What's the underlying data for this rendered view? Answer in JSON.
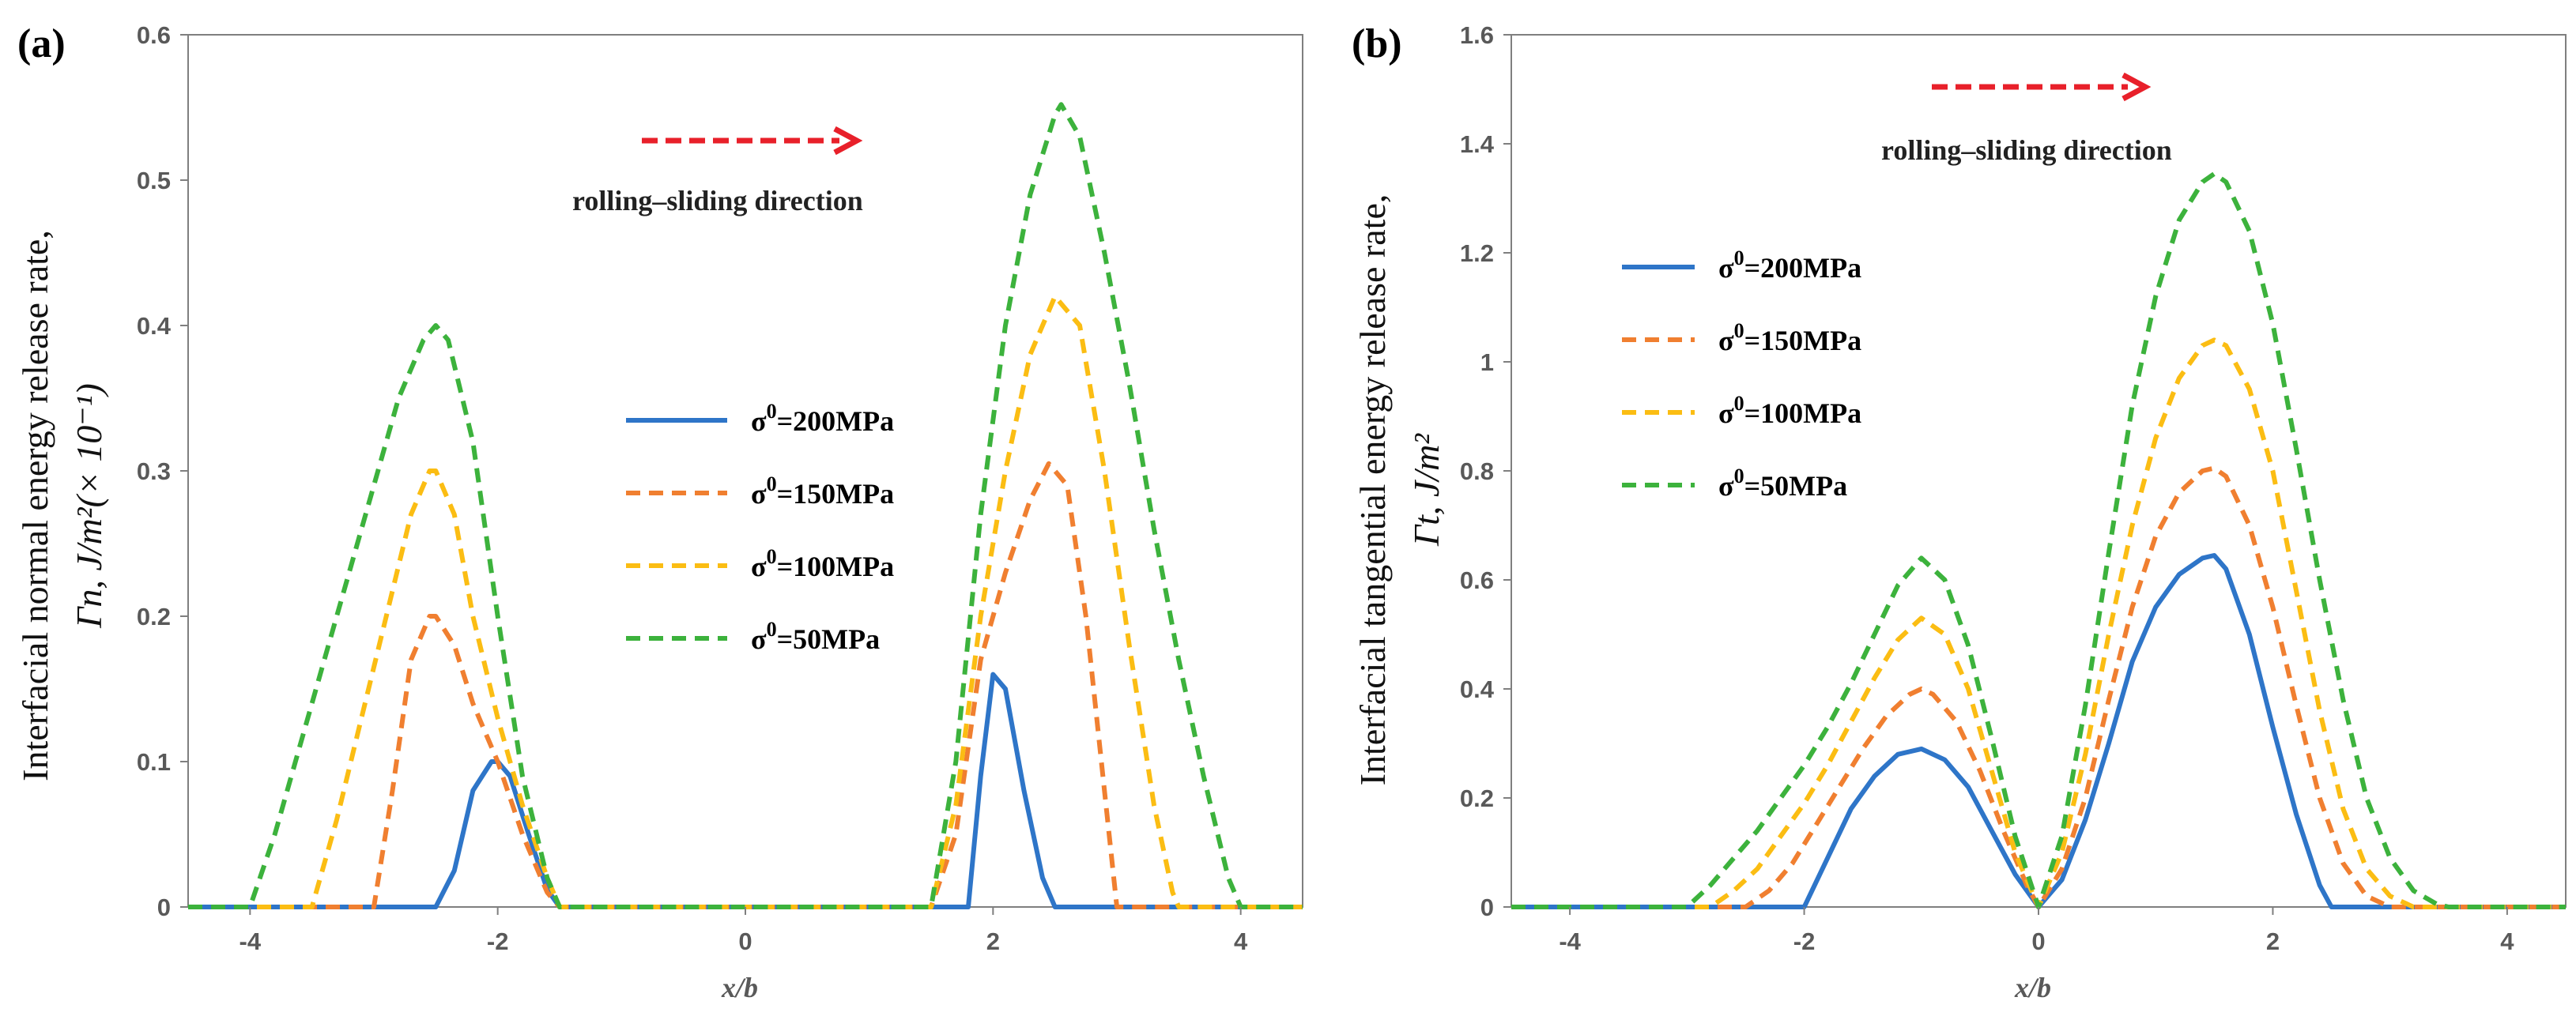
{
  "chart_data": [
    {
      "type": "line",
      "panel_label": "(a)",
      "title": "",
      "xlabel": "x/b",
      "ylabel_line1": "Interfacial normal energy release rate,",
      "ylabel_line2": "Γn,  J/m²(× 10⁻¹)",
      "xlim": [
        -4.5,
        4.5
      ],
      "ylim": [
        0,
        0.6
      ],
      "xticks": [
        -4,
        -2,
        0,
        2,
        4
      ],
      "xtick_labels": [
        "-4",
        "-2",
        "0",
        "2",
        "4"
      ],
      "yticks": [
        0,
        0.1,
        0.2,
        0.3,
        0.4,
        0.5,
        0.6
      ],
      "ytick_labels": [
        "0",
        "0.1",
        "0.2",
        "0.3",
        "0.4",
        "0.5",
        "0.6"
      ],
      "annotation": "rolling–sliding direction",
      "legend_position": "center",
      "series": [
        {
          "name": "σ⁰=200MPa",
          "legend_main": "σ",
          "legend_sup": "0",
          "legend_rest": "=200MPa",
          "color": "#2e75c8",
          "dash": "solid",
          "x": [
            -4.5,
            -2.5,
            -2.35,
            -2.2,
            -2.05,
            -2.0,
            -1.9,
            -1.75,
            -1.6,
            -1.5,
            1.5,
            1.8,
            1.9,
            2.0,
            2.1,
            2.25,
            2.4,
            2.5,
            4.5
          ],
          "y": [
            0,
            0,
            0.025,
            0.08,
            0.1,
            0.1,
            0.09,
            0.05,
            0.012,
            0,
            0,
            0,
            0.09,
            0.16,
            0.15,
            0.08,
            0.02,
            0,
            0
          ]
        },
        {
          "name": "σ⁰=150MPa",
          "legend_main": "σ",
          "legend_sup": "0",
          "legend_rest": "=150MPa",
          "color": "#f07f30",
          "dash": "dash",
          "x": [
            -4.5,
            -3.0,
            -2.85,
            -2.7,
            -2.55,
            -2.5,
            -2.35,
            -2.2,
            -2.0,
            -1.8,
            -1.6,
            -1.5,
            1.5,
            1.7,
            1.9,
            2.1,
            2.3,
            2.45,
            2.6,
            2.75,
            2.9,
            3.0,
            4.5
          ],
          "y": [
            0,
            0,
            0.08,
            0.17,
            0.2,
            0.2,
            0.18,
            0.14,
            0.1,
            0.05,
            0.01,
            0,
            0,
            0.05,
            0.17,
            0.23,
            0.28,
            0.305,
            0.29,
            0.2,
            0.08,
            0,
            0
          ]
        },
        {
          "name": "σ⁰=100MPa",
          "legend_main": "σ",
          "legend_sup": "0",
          "legend_rest": "=100MPa",
          "color": "#fbbd13",
          "dash": "dash",
          "x": [
            -4.5,
            -3.5,
            -3.3,
            -3.1,
            -2.9,
            -2.7,
            -2.55,
            -2.5,
            -2.35,
            -2.2,
            -2.0,
            -1.8,
            -1.6,
            -1.5,
            1.5,
            1.7,
            1.9,
            2.1,
            2.3,
            2.5,
            2.7,
            2.9,
            3.1,
            3.3,
            3.45,
            3.5,
            4.5
          ],
          "y": [
            0,
            0,
            0.06,
            0.13,
            0.2,
            0.27,
            0.3,
            0.3,
            0.27,
            0.2,
            0.13,
            0.07,
            0.02,
            0,
            0,
            0.07,
            0.2,
            0.3,
            0.38,
            0.42,
            0.4,
            0.3,
            0.18,
            0.07,
            0.01,
            0,
            0
          ]
        },
        {
          "name": "σ⁰=50MPa",
          "legend_main": "σ",
          "legend_sup": "0",
          "legend_rest": "=50MPa",
          "color": "#3cb23c",
          "dash": "dash",
          "x": [
            -4.5,
            -4.0,
            -3.8,
            -3.6,
            -3.4,
            -3.2,
            -3.0,
            -2.8,
            -2.6,
            -2.5,
            -2.4,
            -2.2,
            -2.0,
            -1.8,
            -1.6,
            -1.5,
            1.5,
            1.7,
            1.9,
            2.1,
            2.3,
            2.5,
            2.55,
            2.7,
            2.9,
            3.1,
            3.3,
            3.5,
            3.7,
            3.9,
            4.0,
            4.5
          ],
          "y": [
            0,
            0,
            0.05,
            0.11,
            0.17,
            0.23,
            0.29,
            0.35,
            0.39,
            0.4,
            0.39,
            0.32,
            0.2,
            0.09,
            0.02,
            0,
            0,
            0.1,
            0.27,
            0.4,
            0.49,
            0.545,
            0.552,
            0.53,
            0.45,
            0.36,
            0.26,
            0.17,
            0.09,
            0.02,
            0,
            0
          ]
        }
      ]
    },
    {
      "type": "line",
      "panel_label": "(b)",
      "title": "",
      "xlabel": "x/b",
      "ylabel_line1": "Interfacial tangential energy release rate,",
      "ylabel_line2": "Γt,  J/m²",
      "xlim": [
        -4.5,
        4.5
      ],
      "ylim": [
        0,
        1.6
      ],
      "xticks": [
        -4,
        -2,
        0,
        2,
        4
      ],
      "xtick_labels": [
        "-4",
        "-2",
        "0",
        "2",
        "4"
      ],
      "yticks": [
        0,
        0.2,
        0.4,
        0.6,
        0.8,
        1.0,
        1.2,
        1.4,
        1.6
      ],
      "ytick_labels": [
        "0",
        "0.2",
        "0.4",
        "0.6",
        "0.8",
        "1",
        "1.2",
        "1.4",
        "1.6"
      ],
      "annotation": "rolling–sliding direction",
      "legend_position": "upper-left",
      "series": [
        {
          "name": "σ⁰=200MPa",
          "legend_main": "σ",
          "legend_sup": "0",
          "legend_rest": "=200MPa",
          "color": "#2e75c8",
          "dash": "solid",
          "x": [
            -4.5,
            -2.0,
            -1.8,
            -1.6,
            -1.4,
            -1.2,
            -1.0,
            -0.8,
            -0.6,
            -0.4,
            -0.2,
            0.0,
            0.2,
            0.4,
            0.6,
            0.8,
            1.0,
            1.2,
            1.4,
            1.5,
            1.6,
            1.8,
            2.0,
            2.2,
            2.4,
            2.5,
            4.5
          ],
          "y": [
            0,
            0,
            0.09,
            0.18,
            0.24,
            0.28,
            0.29,
            0.27,
            0.22,
            0.14,
            0.06,
            0.0,
            0.05,
            0.16,
            0.3,
            0.45,
            0.55,
            0.61,
            0.64,
            0.645,
            0.62,
            0.5,
            0.33,
            0.17,
            0.04,
            0,
            0
          ]
        },
        {
          "name": "σ⁰=150MPa",
          "legend_main": "σ",
          "legend_sup": "0",
          "legend_rest": "=150MPa",
          "color": "#f07f30",
          "dash": "dash",
          "x": [
            -4.5,
            -2.5,
            -2.3,
            -2.1,
            -1.9,
            -1.7,
            -1.5,
            -1.3,
            -1.1,
            -1.0,
            -0.9,
            -0.7,
            -0.5,
            -0.3,
            -0.1,
            0.0,
            0.2,
            0.4,
            0.6,
            0.8,
            1.0,
            1.2,
            1.4,
            1.5,
            1.6,
            1.8,
            2.0,
            2.2,
            2.4,
            2.6,
            2.8,
            3.0,
            4.5
          ],
          "y": [
            0,
            0,
            0.03,
            0.08,
            0.15,
            0.22,
            0.29,
            0.35,
            0.39,
            0.4,
            0.39,
            0.34,
            0.25,
            0.14,
            0.04,
            0.0,
            0.07,
            0.2,
            0.38,
            0.55,
            0.68,
            0.76,
            0.8,
            0.805,
            0.79,
            0.7,
            0.55,
            0.37,
            0.2,
            0.08,
            0.02,
            0,
            0
          ]
        },
        {
          "name": "σ⁰=100MPa",
          "legend_main": "σ",
          "legend_sup": "0",
          "legend_rest": "=100MPa",
          "color": "#fbbd13",
          "dash": "dash",
          "x": [
            -4.5,
            -2.8,
            -2.6,
            -2.4,
            -2.2,
            -2.0,
            -1.8,
            -1.6,
            -1.4,
            -1.2,
            -1.0,
            -0.8,
            -0.6,
            -0.4,
            -0.2,
            0.0,
            0.2,
            0.4,
            0.6,
            0.8,
            1.0,
            1.2,
            1.4,
            1.5,
            1.6,
            1.8,
            2.0,
            2.2,
            2.4,
            2.6,
            2.8,
            3.0,
            3.2,
            4.5
          ],
          "y": [
            0,
            0,
            0.03,
            0.07,
            0.13,
            0.19,
            0.26,
            0.34,
            0.42,
            0.49,
            0.53,
            0.5,
            0.4,
            0.25,
            0.1,
            0.0,
            0.1,
            0.28,
            0.5,
            0.7,
            0.86,
            0.97,
            1.03,
            1.04,
            1.03,
            0.95,
            0.8,
            0.58,
            0.36,
            0.18,
            0.07,
            0.02,
            0,
            0
          ]
        },
        {
          "name": "σ⁰=50MPa",
          "legend_main": "σ",
          "legend_sup": "0",
          "legend_rest": "=50MPa",
          "color": "#3cb23c",
          "dash": "dash",
          "x": [
            -4.5,
            -3.0,
            -2.8,
            -2.6,
            -2.4,
            -2.2,
            -2.0,
            -1.8,
            -1.6,
            -1.4,
            -1.2,
            -1.0,
            -0.8,
            -0.6,
            -0.4,
            -0.2,
            0.0,
            0.2,
            0.4,
            0.6,
            0.8,
            1.0,
            1.2,
            1.4,
            1.5,
            1.6,
            1.8,
            2.0,
            2.2,
            2.4,
            2.6,
            2.8,
            3.0,
            3.2,
            3.4,
            3.5,
            4.5
          ],
          "y": [
            0,
            0,
            0.04,
            0.09,
            0.14,
            0.2,
            0.26,
            0.33,
            0.41,
            0.5,
            0.59,
            0.64,
            0.6,
            0.48,
            0.31,
            0.13,
            0.0,
            0.13,
            0.37,
            0.65,
            0.92,
            1.12,
            1.26,
            1.33,
            1.345,
            1.33,
            1.24,
            1.07,
            0.84,
            0.6,
            0.38,
            0.2,
            0.09,
            0.03,
            0.005,
            0,
            0
          ]
        }
      ]
    }
  ]
}
